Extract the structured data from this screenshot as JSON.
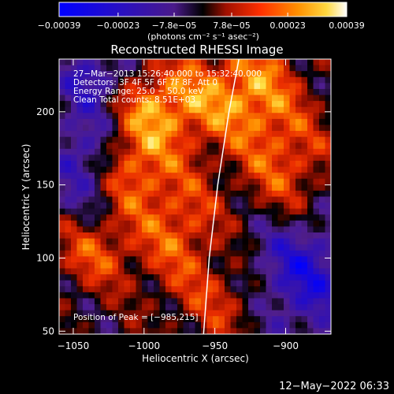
{
  "chart_data": {
    "type": "heatmap",
    "title": "Reconstructed RHESSI Image",
    "xlabel": "Heliocentric X (arcsec)",
    "ylabel": "Heliocentric Y (arcsec)",
    "xlim": [
      -1060,
      -868
    ],
    "ylim": [
      48,
      236
    ],
    "x_ticks": [
      -1050,
      -1000,
      -950,
      -900
    ],
    "x_tick_labels": [
      "−1050",
      "−1000",
      "−950",
      "−900"
    ],
    "y_ticks": [
      50,
      100,
      150,
      200
    ],
    "y_tick_labels": [
      "50",
      "100",
      "150",
      "200"
    ],
    "colorbar": {
      "range": [
        -0.00039,
        0.00039
      ],
      "tick_values": [
        -0.00039,
        -0.00023,
        -7.8e-05,
        7.8e-05,
        0.00023,
        0.00039
      ],
      "tick_labels": [
        "−0.00039",
        "−0.00023",
        "−7.8e−05",
        "7.8e−05",
        "0.00023",
        "0.00039"
      ],
      "unit": "(photons cm⁻² s⁻¹ asec⁻²)"
    },
    "annotations": [
      "27−Mar−2013 15:26:40.000 to 15:32:40.000",
      "Detectors: 3F 4F 5F 6F 7F 8F, Att 0",
      "Energy Range: 25.0 − 50.0 keV",
      "Clean     Total counts: 8.51E+03"
    ],
    "peak_label": "Position of Peak = [−985,215]",
    "peak": [
      -985,
      215
    ],
    "limb": [
      [
        -958,
        48
      ],
      [
        -954,
        100
      ],
      [
        -948,
        150
      ],
      [
        -940,
        200
      ],
      [
        -933,
        236
      ]
    ]
  },
  "footer_timestamp": "12−May−2022 06:33",
  "colors": {
    "background": "#000000",
    "text": "#ffffff",
    "colormap": [
      "#0000ff",
      "#3b1aa8",
      "#55209c",
      "#000000",
      "#a01000",
      "#e02400",
      "#ff7000",
      "#ffc820",
      "#ffffff"
    ]
  }
}
